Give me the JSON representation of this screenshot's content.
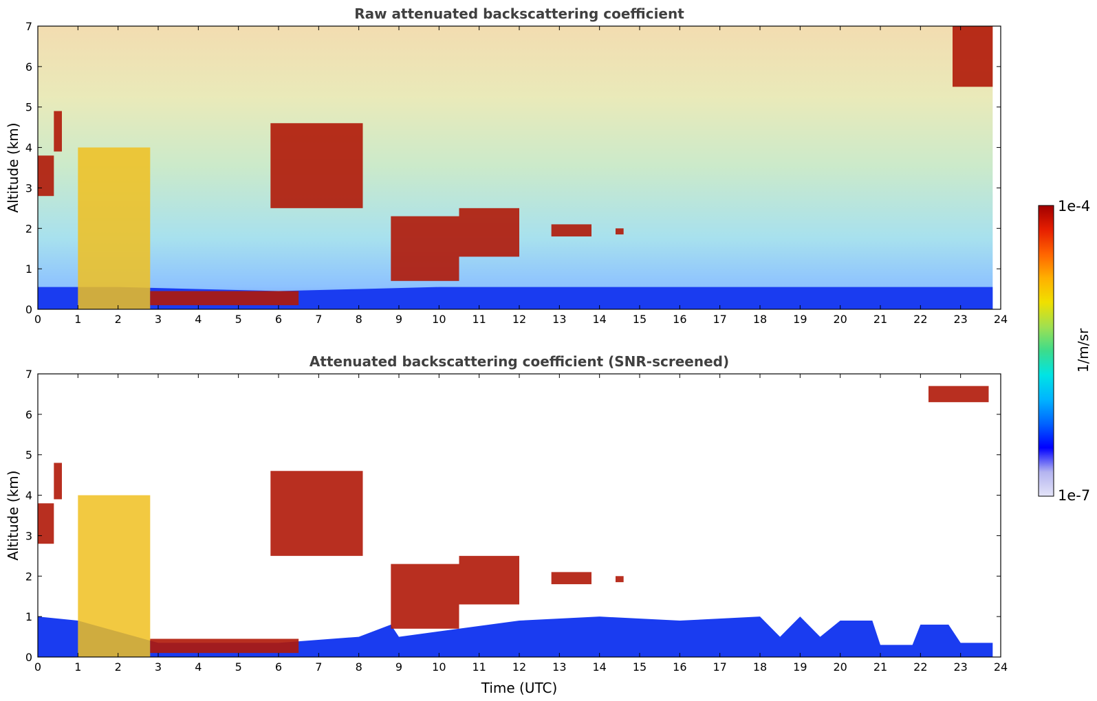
{
  "chart_data": [
    {
      "type": "heatmap",
      "title": "Raw attenuated backscattering coefficient",
      "xlabel": "",
      "ylabel": "Altitude (km)",
      "xlim": [
        0,
        24
      ],
      "ylim": [
        0,
        7
      ],
      "x_ticks": [
        "0",
        "1",
        "2",
        "3",
        "4",
        "5",
        "6",
        "7",
        "8",
        "9",
        "10",
        "11",
        "12",
        "13",
        "14",
        "15",
        "16",
        "17",
        "18",
        "19",
        "20",
        "21",
        "22",
        "23",
        "24"
      ],
      "y_ticks": [
        "0",
        "1",
        "2",
        "3",
        "4",
        "5",
        "6",
        "7"
      ],
      "features": {
        "boundary_layer": [
          [
            0,
            0.55
          ],
          [
            2,
            0.55
          ],
          [
            4,
            0.5
          ],
          [
            6,
            0.45
          ],
          [
            8,
            0.5
          ],
          [
            10,
            0.55
          ],
          [
            12,
            0.55
          ],
          [
            14,
            0.55
          ],
          [
            16,
            0.55
          ],
          [
            18,
            0.55
          ],
          [
            20,
            0.55
          ],
          [
            22,
            0.55
          ],
          [
            23.8,
            0.55
          ]
        ],
        "cloud_layers": [
          {
            "x": [
              0,
              0.4
            ],
            "y": [
              2.8,
              3.8
            ]
          },
          {
            "x": [
              0.4,
              0.6
            ],
            "y": [
              3.9,
              4.9
            ]
          },
          {
            "x": [
              1,
              2.8
            ],
            "y": [
              0,
              4.0
            ]
          },
          {
            "x": [
              2.8,
              6.5
            ],
            "y": [
              0.1,
              0.45
            ]
          },
          {
            "x": [
              5.8,
              8.1
            ],
            "y": [
              2.5,
              4.6
            ]
          },
          {
            "x": [
              8.8,
              10.5
            ],
            "y": [
              0.7,
              2.3
            ]
          },
          {
            "x": [
              10.5,
              12.0
            ],
            "y": [
              1.3,
              2.5
            ]
          },
          {
            "x": [
              12.8,
              13.8
            ],
            "y": [
              1.8,
              2.1
            ]
          },
          {
            "x": [
              14.4,
              14.6
            ],
            "y": [
              1.85,
              2.0
            ]
          },
          {
            "x": [
              22.8,
              23.8
            ],
            "y": [
              5.5,
              7.0
            ]
          }
        ]
      }
    },
    {
      "type": "heatmap",
      "title": "Attenuated backscattering coefficient (SNR-screened)",
      "xlabel": "Time (UTC)",
      "ylabel": "Altitude (km)",
      "xlim": [
        0,
        24
      ],
      "ylim": [
        0,
        7
      ],
      "x_ticks": [
        "0",
        "1",
        "2",
        "3",
        "4",
        "5",
        "6",
        "7",
        "8",
        "9",
        "10",
        "11",
        "12",
        "13",
        "14",
        "15",
        "16",
        "17",
        "18",
        "19",
        "20",
        "21",
        "22",
        "23",
        "24"
      ],
      "y_ticks": [
        "0",
        "1",
        "2",
        "3",
        "4",
        "5",
        "6",
        "7"
      ],
      "features": {
        "boundary_layer": [
          [
            0,
            1.0
          ],
          [
            1,
            0.9
          ],
          [
            3,
            0.35
          ],
          [
            6,
            0.35
          ],
          [
            8,
            0.5
          ],
          [
            8.8,
            0.8
          ],
          [
            9,
            0.5
          ],
          [
            12,
            0.9
          ],
          [
            14,
            1.0
          ],
          [
            16,
            0.9
          ],
          [
            18,
            1.0
          ],
          [
            18.5,
            0.5
          ],
          [
            19,
            1.0
          ],
          [
            19.5,
            0.5
          ],
          [
            20,
            0.9
          ],
          [
            20.8,
            0.9
          ],
          [
            21,
            0.3
          ],
          [
            21.8,
            0.3
          ],
          [
            22,
            0.8
          ],
          [
            22.7,
            0.8
          ],
          [
            23,
            0.35
          ],
          [
            23.8,
            0.35
          ]
        ],
        "cloud_layers": [
          {
            "x": [
              0,
              0.4
            ],
            "y": [
              2.8,
              3.8
            ]
          },
          {
            "x": [
              0.4,
              0.6
            ],
            "y": [
              3.9,
              4.8
            ]
          },
          {
            "x": [
              1,
              2.8
            ],
            "y": [
              0,
              4.0
            ]
          },
          {
            "x": [
              2.8,
              6.5
            ],
            "y": [
              0.1,
              0.45
            ]
          },
          {
            "x": [
              5.8,
              8.1
            ],
            "y": [
              2.5,
              4.6
            ]
          },
          {
            "x": [
              8.8,
              10.5
            ],
            "y": [
              0.7,
              2.3
            ]
          },
          {
            "x": [
              10.5,
              12.0
            ],
            "y": [
              1.3,
              2.5
            ]
          },
          {
            "x": [
              12.8,
              13.8
            ],
            "y": [
              1.8,
              2.1
            ]
          },
          {
            "x": [
              14.4,
              14.6
            ],
            "y": [
              1.85,
              2.0
            ]
          },
          {
            "x": [
              22.2,
              23.7
            ],
            "y": [
              6.3,
              6.7
            ]
          }
        ]
      }
    }
  ],
  "colorbar": {
    "label": "1/m/sr",
    "max_label": "1e-4",
    "min_label": "1e-7",
    "scale": "log",
    "colors": [
      "#e4e4f8",
      "#b4b4f0",
      "#0000ff",
      "#0064ff",
      "#00b4ff",
      "#00e4e4",
      "#3cdc8c",
      "#a0e050",
      "#f0e000",
      "#ffb000",
      "#ff6400",
      "#e61e00",
      "#a00000"
    ]
  }
}
